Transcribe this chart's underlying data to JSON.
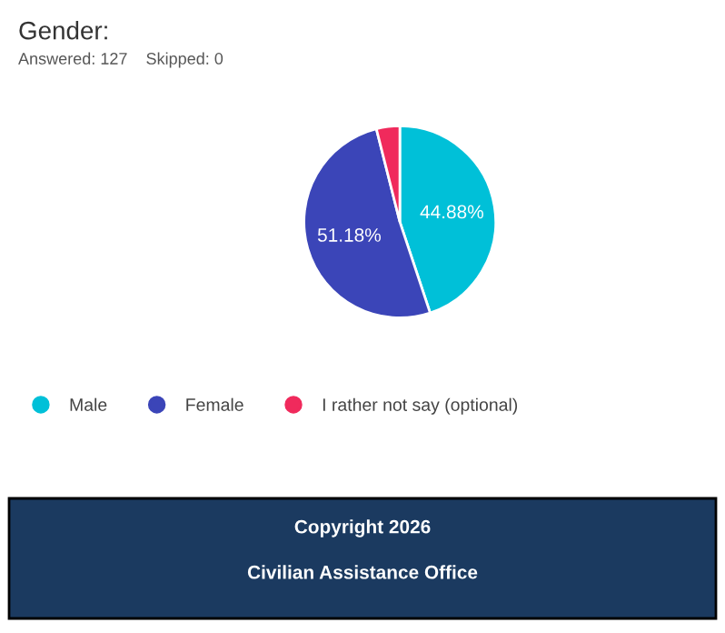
{
  "chart_data": {
    "type": "pie",
    "title": "Gender:",
    "subtitle": "Answered: 127    Skipped: 0",
    "categories": [
      "Male",
      "Female",
      "I rather not say (optional)"
    ],
    "values": [
      44.88,
      51.18,
      3.94
    ],
    "colors": [
      "#00c0d8",
      "#3b45b8",
      "#f02a5c"
    ],
    "value_labels": [
      "44.88%",
      "51.18%",
      null
    ],
    "legend": "bottom",
    "annotations": [
      "Copyright 2026",
      "Civilian Assistance Office"
    ]
  }
}
